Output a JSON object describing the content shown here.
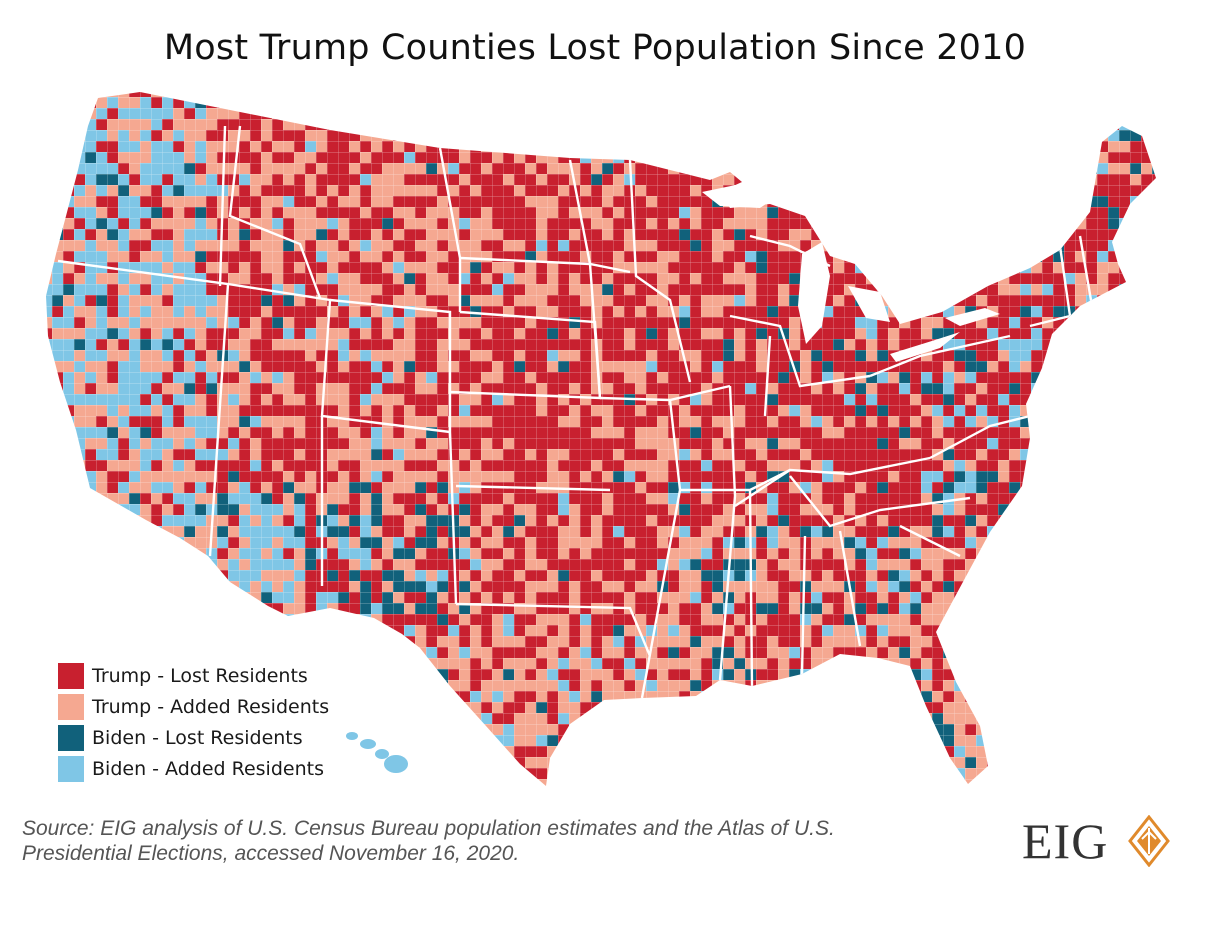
{
  "title": "Most Trump Counties Lost Population Since 2010",
  "legend": [
    {
      "label": "Trump - Lost Residents",
      "color": "#c8202f"
    },
    {
      "label": "Trump - Added Residents",
      "color": "#f5a891"
    },
    {
      "label": "Biden - Lost Residents",
      "color": "#11617b"
    },
    {
      "label": "Biden - Added Residents",
      "color": "#7fc6e6"
    }
  ],
  "source": "Source: EIG analysis of U.S. Census Bureau population estimates and the Atlas of U.S. Presidential Elections, accessed November 16, 2020.",
  "logo": {
    "text": "EIG",
    "accent": "#e08a2c"
  },
  "map": {
    "subject": "U.S. counties",
    "categories": [
      "Trump - Lost Residents",
      "Trump - Added Residents",
      "Biden - Lost Residents",
      "Biden - Added Residents"
    ],
    "colors": {
      "trump_lost": "#c8202f",
      "trump_added": "#f5a891",
      "biden_lost": "#11617b",
      "biden_added": "#7fc6e6",
      "borders": "#ffffff"
    }
  }
}
